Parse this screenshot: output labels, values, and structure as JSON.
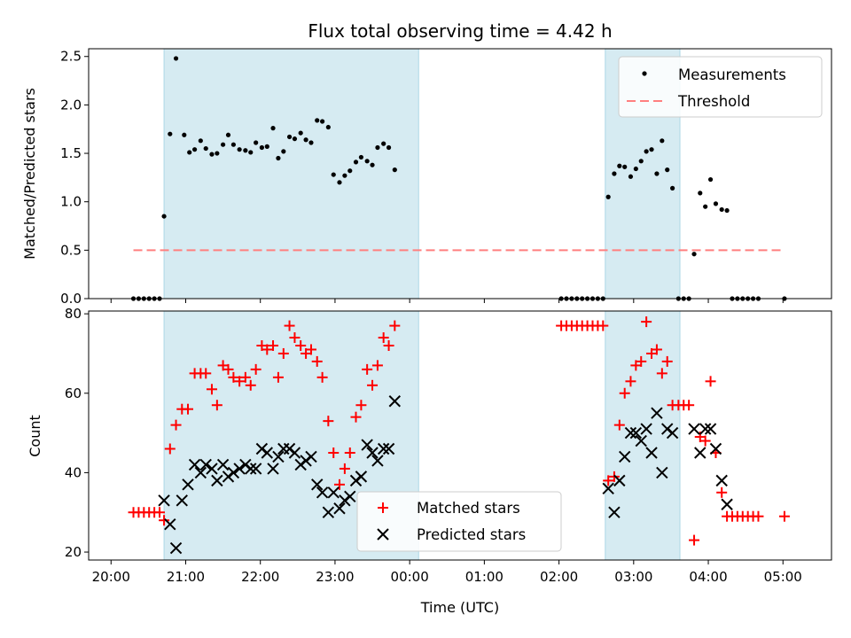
{
  "chart_data": {
    "title": "Flux total observing time = 4.42 h",
    "xlabel": "Time (UTC)",
    "x_unit": "hours past 20:00 UTC",
    "xlim": [
      -0.3,
      9.65
    ],
    "xticks": [
      {
        "x": 0,
        "label": "20:00"
      },
      {
        "x": 1,
        "label": "21:00"
      },
      {
        "x": 2,
        "label": "22:00"
      },
      {
        "x": 3,
        "label": "23:00"
      },
      {
        "x": 4,
        "label": "00:00"
      },
      {
        "x": 5,
        "label": "01:00"
      },
      {
        "x": 6,
        "label": "02:00"
      },
      {
        "x": 7,
        "label": "03:00"
      },
      {
        "x": 8,
        "label": "04:00"
      },
      {
        "x": 9,
        "label": "05:00"
      }
    ],
    "shaded_intervals": [
      [
        0.71,
        4.12
      ],
      [
        6.62,
        7.62
      ]
    ],
    "panels": [
      {
        "type": "scatter",
        "ylabel": "Matched/Predicted stars",
        "ylim": [
          0,
          2.58
        ],
        "yticks": [
          "0.0",
          "0.5",
          "1.0",
          "1.5",
          "2.0",
          "2.5"
        ],
        "legend": {
          "position": "top-right",
          "entries": [
            "Measurements",
            "Threshold"
          ]
        },
        "threshold": {
          "name": "Threshold",
          "y": 0.5,
          "x_range": [
            0.3,
            9.0
          ],
          "color": "#ff7f7f"
        },
        "series": [
          {
            "name": "Measurements",
            "marker": "dot",
            "color": "#000000",
            "points": [
              [
                0.3,
                0
              ],
              [
                0.37,
                0
              ],
              [
                0.44,
                0
              ],
              [
                0.51,
                0
              ],
              [
                0.58,
                0
              ],
              [
                0.65,
                0
              ],
              [
                0.71,
                0.85
              ],
              [
                0.79,
                1.7
              ],
              [
                0.87,
                2.48
              ],
              [
                0.98,
                1.69
              ],
              [
                1.05,
                1.51
              ],
              [
                1.12,
                1.54
              ],
              [
                1.2,
                1.63
              ],
              [
                1.27,
                1.55
              ],
              [
                1.35,
                1.49
              ],
              [
                1.42,
                1.5
              ],
              [
                1.5,
                1.59
              ],
              [
                1.57,
                1.69
              ],
              [
                1.64,
                1.59
              ],
              [
                1.72,
                1.54
              ],
              [
                1.8,
                1.53
              ],
              [
                1.87,
                1.51
              ],
              [
                1.94,
                1.61
              ],
              [
                2.02,
                1.56
              ],
              [
                2.09,
                1.57
              ],
              [
                2.17,
                1.76
              ],
              [
                2.24,
                1.45
              ],
              [
                2.31,
                1.52
              ],
              [
                2.39,
                1.67
              ],
              [
                2.46,
                1.65
              ],
              [
                2.54,
                1.71
              ],
              [
                2.61,
                1.64
              ],
              [
                2.68,
                1.61
              ],
              [
                2.76,
                1.84
              ],
              [
                2.83,
                1.83
              ],
              [
                2.91,
                1.77
              ],
              [
                2.98,
                1.28
              ],
              [
                3.06,
                1.2
              ],
              [
                3.13,
                1.27
              ],
              [
                3.2,
                1.32
              ],
              [
                3.28,
                1.41
              ],
              [
                3.35,
                1.46
              ],
              [
                3.43,
                1.42
              ],
              [
                3.5,
                1.38
              ],
              [
                3.57,
                1.56
              ],
              [
                3.65,
                1.6
              ],
              [
                3.72,
                1.56
              ],
              [
                3.8,
                1.33
              ],
              [
                6.03,
                0
              ],
              [
                6.1,
                0
              ],
              [
                6.17,
                0
              ],
              [
                6.24,
                0
              ],
              [
                6.31,
                0
              ],
              [
                6.38,
                0
              ],
              [
                6.45,
                0
              ],
              [
                6.52,
                0
              ],
              [
                6.59,
                0
              ],
              [
                6.66,
                1.05
              ],
              [
                6.74,
                1.29
              ],
              [
                6.81,
                1.37
              ],
              [
                6.88,
                1.36
              ],
              [
                6.96,
                1.26
              ],
              [
                7.03,
                1.34
              ],
              [
                7.1,
                1.42
              ],
              [
                7.17,
                1.52
              ],
              [
                7.24,
                1.54
              ],
              [
                7.31,
                1.29
              ],
              [
                7.38,
                1.63
              ],
              [
                7.45,
                1.33
              ],
              [
                7.52,
                1.14
              ],
              [
                7.6,
                0
              ],
              [
                7.67,
                0
              ],
              [
                7.74,
                0
              ],
              [
                7.81,
                0.46
              ],
              [
                7.89,
                1.09
              ],
              [
                7.96,
                0.95
              ],
              [
                8.03,
                1.23
              ],
              [
                8.1,
                0.98
              ],
              [
                8.18,
                0.92
              ],
              [
                8.25,
                0.91
              ],
              [
                8.32,
                0
              ],
              [
                8.39,
                0
              ],
              [
                8.46,
                0
              ],
              [
                8.53,
                0
              ],
              [
                8.6,
                0
              ],
              [
                8.67,
                0
              ],
              [
                9.02,
                0
              ]
            ]
          }
        ]
      },
      {
        "type": "scatter",
        "ylabel": "Count",
        "ylim": [
          18,
          80.7
        ],
        "yticks": [
          "20",
          "40",
          "60",
          "80"
        ],
        "legend": {
          "position": "lower-center",
          "entries": [
            "Matched stars",
            "Predicted stars"
          ]
        },
        "series": [
          {
            "name": "Matched stars",
            "marker": "plus",
            "color": "#ff0000",
            "points": [
              [
                0.3,
                30
              ],
              [
                0.37,
                30
              ],
              [
                0.44,
                30
              ],
              [
                0.51,
                30
              ],
              [
                0.58,
                30
              ],
              [
                0.65,
                30
              ],
              [
                0.71,
                28
              ],
              [
                0.79,
                46
              ],
              [
                0.87,
                52
              ],
              [
                0.95,
                56
              ],
              [
                1.03,
                56
              ],
              [
                1.12,
                65
              ],
              [
                1.2,
                65
              ],
              [
                1.27,
                65
              ],
              [
                1.35,
                61
              ],
              [
                1.42,
                57
              ],
              [
                1.5,
                67
              ],
              [
                1.57,
                66
              ],
              [
                1.64,
                64
              ],
              [
                1.72,
                63
              ],
              [
                1.8,
                64
              ],
              [
                1.87,
                62
              ],
              [
                1.94,
                66
              ],
              [
                2.02,
                72
              ],
              [
                2.09,
                71
              ],
              [
                2.17,
                72
              ],
              [
                2.24,
                64
              ],
              [
                2.31,
                70
              ],
              [
                2.39,
                77
              ],
              [
                2.46,
                74
              ],
              [
                2.54,
                72
              ],
              [
                2.61,
                70
              ],
              [
                2.68,
                71
              ],
              [
                2.76,
                68
              ],
              [
                2.83,
                64
              ],
              [
                2.91,
                53
              ],
              [
                2.98,
                45
              ],
              [
                3.06,
                37
              ],
              [
                3.13,
                41
              ],
              [
                3.2,
                45
              ],
              [
                3.28,
                54
              ],
              [
                3.35,
                57
              ],
              [
                3.43,
                66
              ],
              [
                3.5,
                62
              ],
              [
                3.57,
                67
              ],
              [
                3.65,
                74
              ],
              [
                3.72,
                72
              ],
              [
                3.8,
                77
              ],
              [
                6.03,
                77
              ],
              [
                6.1,
                77
              ],
              [
                6.17,
                77
              ],
              [
                6.24,
                77
              ],
              [
                6.31,
                77
              ],
              [
                6.38,
                77
              ],
              [
                6.45,
                77
              ],
              [
                6.52,
                77
              ],
              [
                6.59,
                77
              ],
              [
                6.66,
                38
              ],
              [
                6.74,
                39
              ],
              [
                6.81,
                52
              ],
              [
                6.88,
                60
              ],
              [
                6.96,
                63
              ],
              [
                7.03,
                67
              ],
              [
                7.1,
                68
              ],
              [
                7.17,
                78
              ],
              [
                7.24,
                70
              ],
              [
                7.31,
                71
              ],
              [
                7.38,
                65
              ],
              [
                7.45,
                68
              ],
              [
                7.52,
                57
              ],
              [
                7.6,
                57
              ],
              [
                7.67,
                57
              ],
              [
                7.74,
                57
              ],
              [
                7.81,
                23
              ],
              [
                7.89,
                49
              ],
              [
                7.96,
                48
              ],
              [
                8.03,
                63
              ],
              [
                8.1,
                45
              ],
              [
                8.18,
                35
              ],
              [
                8.25,
                29
              ],
              [
                8.32,
                29
              ],
              [
                8.39,
                29
              ],
              [
                8.46,
                29
              ],
              [
                8.53,
                29
              ],
              [
                8.6,
                29
              ],
              [
                8.67,
                29
              ],
              [
                9.02,
                29
              ]
            ]
          },
          {
            "name": "Predicted stars",
            "marker": "x",
            "color": "#000000",
            "points": [
              [
                0.71,
                33
              ],
              [
                0.79,
                27
              ],
              [
                0.87,
                21
              ],
              [
                0.95,
                33
              ],
              [
                1.03,
                37
              ],
              [
                1.12,
                42
              ],
              [
                1.2,
                40
              ],
              [
                1.27,
                42
              ],
              [
                1.35,
                41
              ],
              [
                1.42,
                38
              ],
              [
                1.5,
                42
              ],
              [
                1.57,
                39
              ],
              [
                1.64,
                40
              ],
              [
                1.72,
                41
              ],
              [
                1.8,
                42
              ],
              [
                1.87,
                41
              ],
              [
                1.94,
                41
              ],
              [
                2.02,
                46
              ],
              [
                2.09,
                45
              ],
              [
                2.17,
                41
              ],
              [
                2.24,
                44
              ],
              [
                2.31,
                46
              ],
              [
                2.39,
                46
              ],
              [
                2.46,
                45
              ],
              [
                2.54,
                42
              ],
              [
                2.61,
                43
              ],
              [
                2.68,
                44
              ],
              [
                2.76,
                37
              ],
              [
                2.83,
                35
              ],
              [
                2.91,
                30
              ],
              [
                2.98,
                35
              ],
              [
                3.06,
                31
              ],
              [
                3.13,
                33
              ],
              [
                3.2,
                34
              ],
              [
                3.28,
                38
              ],
              [
                3.35,
                39
              ],
              [
                3.43,
                47
              ],
              [
                3.5,
                45
              ],
              [
                3.57,
                43
              ],
              [
                3.65,
                46
              ],
              [
                3.72,
                46
              ],
              [
                3.8,
                58
              ],
              [
                6.66,
                36
              ],
              [
                6.74,
                30
              ],
              [
                6.81,
                38
              ],
              [
                6.88,
                44
              ],
              [
                6.96,
                50
              ],
              [
                7.03,
                50
              ],
              [
                7.1,
                48
              ],
              [
                7.17,
                51
              ],
              [
                7.24,
                45
              ],
              [
                7.31,
                55
              ],
              [
                7.38,
                40
              ],
              [
                7.45,
                51
              ],
              [
                7.52,
                50
              ],
              [
                7.81,
                51
              ],
              [
                7.89,
                45
              ],
              [
                7.96,
                51
              ],
              [
                8.03,
                51
              ],
              [
                8.1,
                46
              ],
              [
                8.18,
                38
              ],
              [
                8.25,
                32
              ]
            ]
          }
        ]
      }
    ]
  }
}
